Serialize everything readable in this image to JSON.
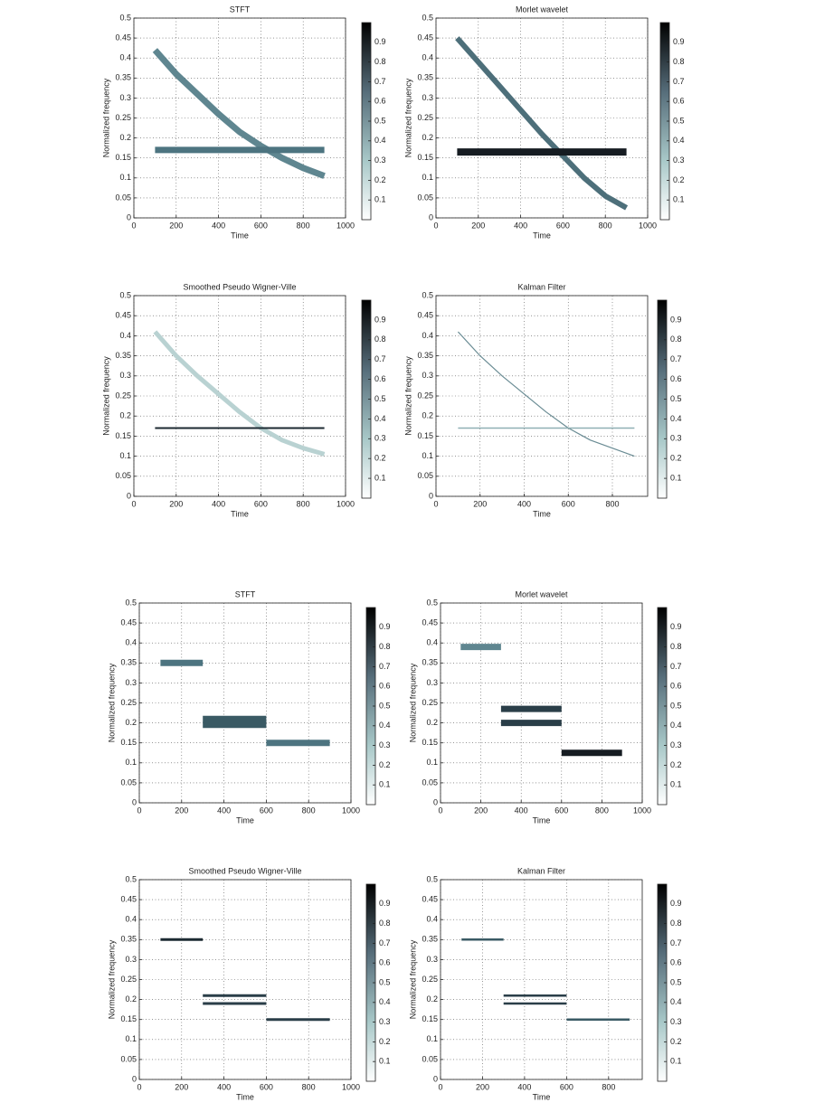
{
  "chart_data": [
    {
      "type": "line",
      "title": "STFT",
      "xlabel": "Time",
      "ylabel": "Normalized frequency",
      "x": [
        100,
        200,
        300,
        400,
        500,
        600,
        700,
        800,
        900
      ],
      "series": [
        {
          "color": "#5f8690",
          "values": [
            0.42,
            0.36,
            0.31,
            0.26,
            0.215,
            0.18,
            0.15,
            0.125,
            0.105
          ]
        },
        {
          "color": "#4d7480",
          "values": [
            0.17,
            0.17,
            0.17,
            0.17,
            0.17,
            0.17,
            0.17,
            0.17,
            0.17
          ]
        }
      ],
      "xlim": [
        0,
        1000
      ],
      "xticks": [
        0,
        200,
        400,
        600,
        800,
        1000
      ],
      "ylim": [
        0,
        0.5
      ],
      "yticks": [
        0,
        0.05,
        0.1,
        0.15,
        0.2,
        0.25,
        0.3,
        0.35,
        0.4,
        0.45,
        0.5
      ],
      "grid": true,
      "clim": [
        0,
        1
      ],
      "cticks": [
        0.1,
        0.2,
        0.3,
        0.4,
        0.5,
        0.6,
        0.7,
        0.8,
        0.9
      ]
    },
    {
      "type": "line",
      "title": "Morlet wavelet",
      "xlabel": "Time",
      "ylabel": "Normalized frequency",
      "x": [
        100,
        200,
        300,
        400,
        500,
        600,
        700,
        800,
        900
      ],
      "series": [
        {
          "color": "#4d6f7a",
          "values": [
            0.45,
            0.39,
            0.33,
            0.27,
            0.21,
            0.155,
            0.1,
            0.055,
            0.025
          ]
        },
        {
          "color": "#161c22",
          "values": [
            0.165,
            0.165,
            0.165,
            0.165,
            0.165,
            0.165,
            0.165,
            0.165,
            0.165
          ]
        }
      ],
      "xlim": [
        0,
        1000
      ],
      "xticks": [
        0,
        200,
        400,
        600,
        800,
        1000
      ],
      "ylim": [
        0,
        0.5
      ],
      "yticks": [
        0,
        0.05,
        0.1,
        0.15,
        0.2,
        0.25,
        0.3,
        0.35,
        0.4,
        0.45,
        0.5
      ],
      "grid": true,
      "clim": [
        0,
        1
      ],
      "cticks": [
        0.1,
        0.2,
        0.3,
        0.4,
        0.5,
        0.6,
        0.7,
        0.8,
        0.9
      ]
    },
    {
      "type": "line",
      "title": "Smoothed Pseudo Wigner-Ville",
      "xlabel": "Time",
      "ylabel": "Normalized frequency",
      "x": [
        100,
        200,
        300,
        400,
        500,
        600,
        700,
        800,
        900
      ],
      "series": [
        {
          "color": "#b9d2d2",
          "values": [
            0.41,
            0.35,
            0.3,
            0.255,
            0.21,
            0.17,
            0.14,
            0.12,
            0.105
          ]
        },
        {
          "color": "#1c2a32",
          "values": [
            0.17,
            0.17,
            0.17,
            0.17,
            0.17,
            0.17,
            0.17,
            0.17,
            0.17
          ]
        }
      ],
      "xlim": [
        0,
        1000
      ],
      "xticks": [
        0,
        200,
        400,
        600,
        800,
        1000
      ],
      "ylim": [
        0,
        0.5
      ],
      "yticks": [
        0,
        0.05,
        0.1,
        0.15,
        0.2,
        0.25,
        0.3,
        0.35,
        0.4,
        0.45,
        0.5
      ],
      "grid": true,
      "clim": [
        0,
        1
      ],
      "cticks": [
        0.1,
        0.2,
        0.3,
        0.4,
        0.5,
        0.6,
        0.7,
        0.8,
        0.9
      ]
    },
    {
      "type": "line",
      "title": "Kalman Filter",
      "xlabel": "Time",
      "ylabel": "Normalized frequency",
      "x": [
        100,
        200,
        300,
        400,
        500,
        600,
        700,
        800,
        900
      ],
      "series": [
        {
          "color": "#6a8c94",
          "values": [
            0.41,
            0.35,
            0.3,
            0.255,
            0.21,
            0.17,
            0.14,
            0.12,
            0.1
          ]
        },
        {
          "color": "#8fb0b4",
          "values": [
            0.17,
            0.17,
            0.17,
            0.17,
            0.17,
            0.17,
            0.17,
            0.17,
            0.17
          ]
        }
      ],
      "xlim": [
        0,
        960
      ],
      "xticks": [
        0,
        200,
        400,
        600,
        800
      ],
      "ylim": [
        0,
        0.5
      ],
      "yticks": [
        0,
        0.05,
        0.1,
        0.15,
        0.2,
        0.25,
        0.3,
        0.35,
        0.4,
        0.45,
        0.5
      ],
      "grid": true,
      "clim": [
        0,
        1
      ],
      "cticks": [
        0.1,
        0.2,
        0.3,
        0.4,
        0.5,
        0.6,
        0.7,
        0.8,
        0.9
      ]
    },
    {
      "type": "line",
      "title": "STFT",
      "xlabel": "Time",
      "ylabel": "Normalized frequency",
      "x": [
        100,
        300,
        300,
        600,
        600,
        900
      ],
      "series": [
        {
          "color": "#4d7480",
          "values": [
            0.35,
            0.35,
            null,
            null,
            null,
            null
          ]
        },
        {
          "color": "#3a5a64",
          "values": [
            null,
            null,
            0.21,
            0.21,
            null,
            null
          ]
        },
        {
          "color": "#3a5a64",
          "values": [
            null,
            null,
            0.195,
            0.195,
            null,
            null
          ]
        },
        {
          "color": "#4d7480",
          "values": [
            null,
            null,
            null,
            null,
            0.15,
            0.15
          ]
        }
      ],
      "xlim": [
        0,
        1000
      ],
      "xticks": [
        0,
        200,
        400,
        600,
        800,
        1000
      ],
      "ylim": [
        0,
        0.5
      ],
      "yticks": [
        0,
        0.05,
        0.1,
        0.15,
        0.2,
        0.25,
        0.3,
        0.35,
        0.4,
        0.45,
        0.5
      ],
      "grid": true,
      "clim": [
        0,
        1
      ],
      "cticks": [
        0.1,
        0.2,
        0.3,
        0.4,
        0.5,
        0.6,
        0.7,
        0.8,
        0.9
      ]
    },
    {
      "type": "line",
      "title": "Morlet wavelet",
      "xlabel": "Time",
      "ylabel": "Normalized frequency",
      "x": [
        100,
        300,
        300,
        600,
        600,
        900
      ],
      "series": [
        {
          "color": "#5f8690",
          "values": [
            0.39,
            0.39,
            null,
            null,
            null,
            null
          ]
        },
        {
          "color": "#2a3e48",
          "values": [
            null,
            null,
            0.235,
            0.235,
            null,
            null
          ]
        },
        {
          "color": "#2a3e48",
          "values": [
            null,
            null,
            0.2,
            0.2,
            null,
            null
          ]
        },
        {
          "color": "#161c22",
          "values": [
            null,
            null,
            null,
            null,
            0.125,
            0.125
          ]
        }
      ],
      "xlim": [
        0,
        1000
      ],
      "xticks": [
        0,
        200,
        400,
        600,
        800,
        1000
      ],
      "ylim": [
        0,
        0.5
      ],
      "yticks": [
        0,
        0.05,
        0.1,
        0.15,
        0.2,
        0.25,
        0.3,
        0.35,
        0.4,
        0.45,
        0.5
      ],
      "grid": true,
      "clim": [
        0,
        1
      ],
      "cticks": [
        0.1,
        0.2,
        0.3,
        0.4,
        0.5,
        0.6,
        0.7,
        0.8,
        0.9
      ]
    },
    {
      "type": "line",
      "title": "Smoothed Pseudo Wigner-Ville",
      "xlabel": "Time",
      "ylabel": "Normalized frequency",
      "x": [
        100,
        300,
        300,
        600,
        600,
        900
      ],
      "series": [
        {
          "color": "#1c2a32",
          "values": [
            0.35,
            0.35,
            null,
            null,
            null,
            null
          ]
        },
        {
          "color": "#2a3e48",
          "values": [
            null,
            null,
            0.21,
            0.21,
            null,
            null
          ]
        },
        {
          "color": "#2a3e48",
          "values": [
            null,
            null,
            0.19,
            0.19,
            null,
            null
          ]
        },
        {
          "color": "#2a3e48",
          "values": [
            null,
            null,
            null,
            null,
            0.15,
            0.15
          ]
        }
      ],
      "xlim": [
        0,
        1000
      ],
      "xticks": [
        0,
        200,
        400,
        600,
        800,
        1000
      ],
      "ylim": [
        0,
        0.5
      ],
      "yticks": [
        0,
        0.05,
        0.1,
        0.15,
        0.2,
        0.25,
        0.3,
        0.35,
        0.4,
        0.45,
        0.5
      ],
      "grid": true,
      "clim": [
        0,
        1
      ],
      "cticks": [
        0.1,
        0.2,
        0.3,
        0.4,
        0.5,
        0.6,
        0.7,
        0.8,
        0.9
      ]
    },
    {
      "type": "line",
      "title": "Kalman Filter",
      "xlabel": "Time",
      "ylabel": "Normalized frequency",
      "x": [
        100,
        300,
        300,
        600,
        600,
        900
      ],
      "series": [
        {
          "color": "#3a5a64",
          "values": [
            0.35,
            0.35,
            null,
            null,
            null,
            null
          ]
        },
        {
          "color": "#2a3e48",
          "values": [
            null,
            null,
            0.21,
            0.21,
            null,
            null
          ]
        },
        {
          "color": "#2a3e48",
          "values": [
            null,
            null,
            0.19,
            0.19,
            null,
            null
          ]
        },
        {
          "color": "#3a5a64",
          "values": [
            null,
            null,
            null,
            null,
            0.15,
            0.15
          ]
        }
      ],
      "xlim": [
        0,
        960
      ],
      "xticks": [
        0,
        200,
        400,
        600,
        800
      ],
      "ylim": [
        0,
        0.5
      ],
      "yticks": [
        0,
        0.05,
        0.1,
        0.15,
        0.2,
        0.25,
        0.3,
        0.35,
        0.4,
        0.45,
        0.5
      ],
      "grid": true,
      "clim": [
        0,
        1
      ],
      "cticks": [
        0.1,
        0.2,
        0.3,
        0.4,
        0.5,
        0.6,
        0.7,
        0.8,
        0.9
      ]
    }
  ]
}
